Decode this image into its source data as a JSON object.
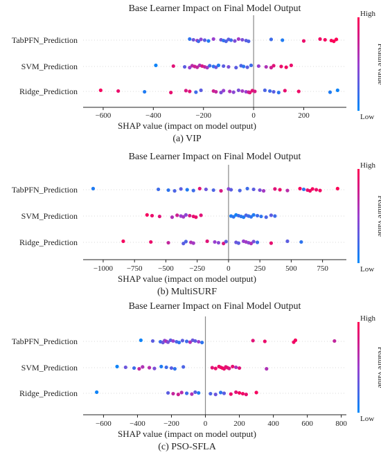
{
  "chart_data": [
    {
      "type": "scatter",
      "title": "Base Learner Impact on Final Model Output",
      "xlabel": "SHAP value (impact on model output)",
      "caption": "(a) VIP",
      "xlim": [
        -680,
        370
      ],
      "xticks": [
        -600,
        -400,
        -200,
        0,
        200
      ],
      "colorbar": {
        "label": "Feature value",
        "high": "High",
        "low": "Low"
      },
      "features": [
        {
          "name": "TabPFN_Prediction",
          "points": [
            [
              -255,
              0.15
            ],
            [
              -240,
              0.35
            ],
            [
              -225,
              0.55
            ],
            [
              -220,
              0.2
            ],
            [
              -210,
              0.45
            ],
            [
              -195,
              0.3
            ],
            [
              -180,
              0.1
            ],
            [
              -160,
              0.5
            ],
            [
              -130,
              0.35
            ],
            [
              -120,
              0.15
            ],
            [
              -110,
              0.25
            ],
            [
              -100,
              0.3
            ],
            [
              -90,
              0.2
            ],
            [
              -75,
              0.4
            ],
            [
              -60,
              0.55
            ],
            [
              -45,
              0.4
            ],
            [
              -30,
              0.3
            ],
            [
              -20,
              0.25
            ],
            [
              70,
              0.2
            ],
            [
              115,
              0.1
            ],
            [
              200,
              0.9
            ],
            [
              265,
              0.92
            ],
            [
              285,
              0.95
            ],
            [
              310,
              0.97
            ],
            [
              320,
              0.98
            ],
            [
              330,
              0.99
            ]
          ]
        },
        {
          "name": "SVM_Prediction",
          "points": [
            [
              -390,
              0.05
            ],
            [
              -320,
              0.85
            ],
            [
              -275,
              0.3
            ],
            [
              -255,
              0.5
            ],
            [
              -245,
              0.65
            ],
            [
              -235,
              0.75
            ],
            [
              -225,
              0.7
            ],
            [
              -215,
              0.6
            ],
            [
              -205,
              0.8
            ],
            [
              -195,
              0.7
            ],
            [
              -185,
              0.55
            ],
            [
              -175,
              0.2
            ],
            [
              -160,
              0.15
            ],
            [
              -150,
              0.35
            ],
            [
              -140,
              0.1
            ],
            [
              -120,
              0.3
            ],
            [
              -100,
              0.4
            ],
            [
              -70,
              0.3
            ],
            [
              -50,
              0.25
            ],
            [
              -40,
              0.15
            ],
            [
              -25,
              0.3
            ],
            [
              -10,
              0.2
            ],
            [
              20,
              0.5
            ],
            [
              50,
              0.6
            ],
            [
              70,
              0.75
            ],
            [
              80,
              0.85
            ],
            [
              110,
              0.9
            ],
            [
              130,
              0.93
            ],
            [
              150,
              0.9
            ]
          ]
        },
        {
          "name": "Ridge_Prediction",
          "points": [
            [
              -610,
              0.95
            ],
            [
              -540,
              0.9
            ],
            [
              -435,
              0.1
            ],
            [
              -330,
              0.88
            ],
            [
              -270,
              0.8
            ],
            [
              -255,
              0.85
            ],
            [
              -230,
              0.2
            ],
            [
              -210,
              0.3
            ],
            [
              -160,
              0.75
            ],
            [
              -150,
              0.7
            ],
            [
              -130,
              0.4
            ],
            [
              -120,
              0.5
            ],
            [
              -95,
              0.6
            ],
            [
              -80,
              0.45
            ],
            [
              -60,
              0.4
            ],
            [
              -45,
              0.55
            ],
            [
              -30,
              0.5
            ],
            [
              -15,
              0.9
            ],
            [
              -5,
              0.85
            ],
            [
              5,
              0.8
            ],
            [
              -20,
              0.75
            ],
            [
              45,
              0.25
            ],
            [
              65,
              0.2
            ],
            [
              80,
              0.3
            ],
            [
              100,
              0.15
            ],
            [
              125,
              0.88
            ],
            [
              180,
              0.92
            ],
            [
              305,
              0.1
            ],
            [
              335,
              0.05
            ]
          ]
        }
      ]
    },
    {
      "type": "scatter",
      "title": "Base Learner Impact on Final Model Output",
      "xlabel": "SHAP value (impact on model output)",
      "caption": "(b) MultiSURF",
      "xlim": [
        -1160,
        940
      ],
      "xticks": [
        -1000,
        -750,
        -500,
        -250,
        0,
        250,
        500,
        750
      ],
      "colorbar": {
        "label": "Feature value",
        "high": "High",
        "low": "Low"
      },
      "features": [
        {
          "name": "TabPFN_Prediction",
          "points": [
            [
              -1080,
              0.1
            ],
            [
              -560,
              0.2
            ],
            [
              -480,
              0.15
            ],
            [
              -430,
              0.25
            ],
            [
              -380,
              0.3
            ],
            [
              -330,
              0.1
            ],
            [
              -280,
              0.2
            ],
            [
              -230,
              0.85
            ],
            [
              -180,
              0.35
            ],
            [
              -120,
              0.25
            ],
            [
              -60,
              0.8
            ],
            [
              0,
              0.45
            ],
            [
              20,
              0.3
            ],
            [
              90,
              0.25
            ],
            [
              150,
              0.2
            ],
            [
              200,
              0.3
            ],
            [
              250,
              0.4
            ],
            [
              280,
              0.55
            ],
            [
              370,
              0.85
            ],
            [
              410,
              0.9
            ],
            [
              470,
              0.65
            ],
            [
              570,
              0.95
            ],
            [
              600,
              0.15
            ],
            [
              630,
              0.88
            ],
            [
              650,
              0.92
            ],
            [
              670,
              0.95
            ],
            [
              700,
              0.9
            ],
            [
              730,
              0.93
            ],
            [
              870,
              0.98
            ]
          ]
        },
        {
          "name": "SVM_Prediction",
          "points": [
            [
              -650,
              0.95
            ],
            [
              -610,
              0.9
            ],
            [
              -550,
              0.85
            ],
            [
              -450,
              0.6
            ],
            [
              -410,
              0.75
            ],
            [
              -380,
              0.5
            ],
            [
              -360,
              0.55
            ],
            [
              -340,
              0.45
            ],
            [
              -310,
              0.8
            ],
            [
              -280,
              0.88
            ],
            [
              -260,
              0.9
            ],
            [
              -220,
              0.85
            ],
            [
              20,
              0.1
            ],
            [
              40,
              0.15
            ],
            [
              60,
              0.05
            ],
            [
              80,
              0.2
            ],
            [
              100,
              0.15
            ],
            [
              120,
              0.1
            ],
            [
              140,
              0.25
            ],
            [
              160,
              0.2
            ],
            [
              180,
              0.15
            ],
            [
              200,
              0.1
            ],
            [
              230,
              0.2
            ],
            [
              260,
              0.15
            ],
            [
              300,
              0.25
            ],
            [
              340,
              0.3
            ],
            [
              370,
              0.2
            ]
          ]
        },
        {
          "name": "Ridge_Prediction",
          "points": [
            [
              -840,
              0.95
            ],
            [
              -620,
              0.9
            ],
            [
              -480,
              0.7
            ],
            [
              -360,
              0.3
            ],
            [
              -340,
              0.25
            ],
            [
              -300,
              0.6
            ],
            [
              -280,
              0.55
            ],
            [
              -170,
              0.85
            ],
            [
              -110,
              0.5
            ],
            [
              -80,
              0.45
            ],
            [
              -40,
              0.8
            ],
            [
              -20,
              0.3
            ],
            [
              60,
              0.35
            ],
            [
              80,
              0.3
            ],
            [
              120,
              0.5
            ],
            [
              140,
              0.55
            ],
            [
              160,
              0.45
            ],
            [
              180,
              0.6
            ],
            [
              200,
              0.4
            ],
            [
              230,
              0.2
            ],
            [
              340,
              0.88
            ],
            [
              470,
              0.3
            ],
            [
              580,
              0.15
            ]
          ]
        }
      ]
    },
    {
      "type": "scatter",
      "title": "Base Learner Impact on Final Model Output",
      "xlabel": "SHAP value (impact on model output)",
      "caption": "(c) PSO-SFLA",
      "xlim": [
        -720,
        830
      ],
      "xticks": [
        -600,
        -400,
        -200,
        0,
        200,
        400,
        600,
        800
      ],
      "colorbar": {
        "label": "Feature value",
        "high": "High",
        "low": "Low"
      },
      "features": [
        {
          "name": "TabPFN_Prediction",
          "points": [
            [
              -380,
              0.05
            ],
            [
              -310,
              0.3
            ],
            [
              -265,
              0.2
            ],
            [
              -250,
              0.35
            ],
            [
              -240,
              0.45
            ],
            [
              -230,
              0.6
            ],
            [
              -220,
              0.4
            ],
            [
              -205,
              0.3
            ],
            [
              -190,
              0.5
            ],
            [
              -170,
              0.25
            ],
            [
              -155,
              0.15
            ],
            [
              -135,
              0.3
            ],
            [
              -110,
              0.2
            ],
            [
              -90,
              0.6
            ],
            [
              -75,
              0.35
            ],
            [
              -60,
              0.3
            ],
            [
              -40,
              0.5
            ],
            [
              -20,
              0.15
            ],
            [
              280,
              0.85
            ],
            [
              350,
              0.9
            ],
            [
              520,
              0.92
            ],
            [
              530,
              0.95
            ],
            [
              760,
              0.7
            ]
          ]
        },
        {
          "name": "SVM_Prediction",
          "points": [
            [
              -520,
              0.05
            ],
            [
              -470,
              0.35
            ],
            [
              -420,
              0.2
            ],
            [
              -390,
              0.7
            ],
            [
              -370,
              0.6
            ],
            [
              -330,
              0.65
            ],
            [
              -300,
              0.4
            ],
            [
              -260,
              0.1
            ],
            [
              -230,
              0.2
            ],
            [
              -200,
              0.3
            ],
            [
              -180,
              0.15
            ],
            [
              -130,
              0.25
            ],
            [
              40,
              0.85
            ],
            [
              60,
              0.9
            ],
            [
              80,
              0.92
            ],
            [
              90,
              0.88
            ],
            [
              100,
              0.95
            ],
            [
              110,
              0.9
            ],
            [
              120,
              0.85
            ],
            [
              130,
              0.9
            ],
            [
              140,
              0.8
            ],
            [
              160,
              0.88
            ],
            [
              180,
              0.6
            ],
            [
              200,
              0.85
            ],
            [
              360,
              0.6
            ]
          ]
        },
        {
          "name": "Ridge_Prediction",
          "points": [
            [
              -640,
              0.05
            ],
            [
              -220,
              0.3
            ],
            [
              -190,
              0.7
            ],
            [
              -160,
              0.75
            ],
            [
              -140,
              0.65
            ],
            [
              -110,
              0.2
            ],
            [
              -80,
              0.6
            ],
            [
              -60,
              0.3
            ],
            [
              -40,
              0.1
            ],
            [
              30,
              0.25
            ],
            [
              60,
              0.35
            ],
            [
              90,
              0.15
            ],
            [
              110,
              0.3
            ],
            [
              150,
              0.9
            ],
            [
              180,
              0.85
            ],
            [
              200,
              0.95
            ],
            [
              220,
              0.92
            ],
            [
              240,
              0.88
            ],
            [
              300,
              0.95
            ]
          ]
        }
      ]
    }
  ]
}
